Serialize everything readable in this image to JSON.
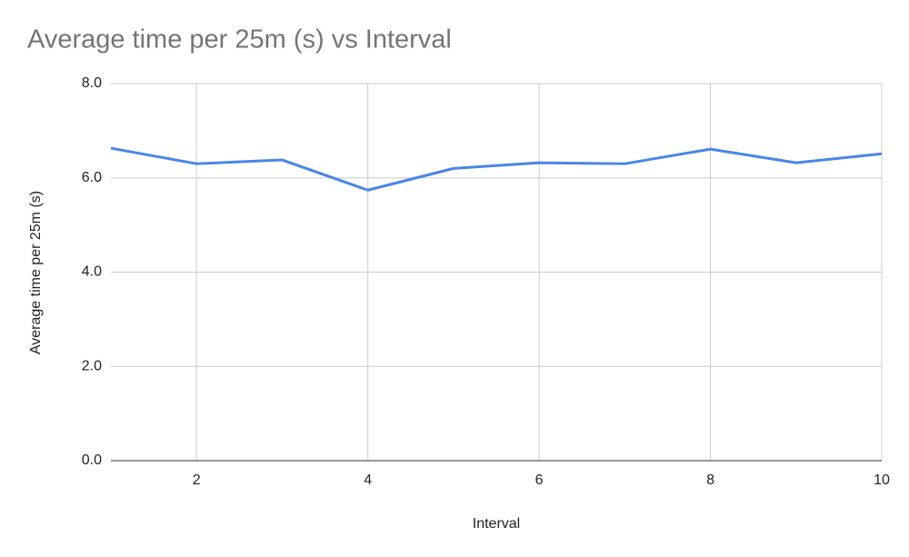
{
  "chart_data": {
    "type": "line",
    "title": "Average time per 25m (s) vs Interval",
    "x_label": "Interval",
    "y_label": "Average time per 25m (s)",
    "x": [
      1,
      2,
      3,
      4,
      5,
      6,
      7,
      8,
      9,
      10
    ],
    "series": [
      {
        "name": "Average time per 25m (s)",
        "color": "#4a86e8",
        "values": [
          6.63,
          6.3,
          6.38,
          5.74,
          6.2,
          6.32,
          6.3,
          6.61,
          6.32,
          6.51
        ]
      }
    ],
    "xlim": [
      1,
      10
    ],
    "xticks": [
      2,
      4,
      6,
      8,
      10
    ],
    "ylim": [
      0,
      8
    ],
    "yticks": [
      {
        "value": 0,
        "label": "0.0"
      },
      {
        "value": 2,
        "label": "2.0"
      },
      {
        "value": 4,
        "label": "4.0"
      },
      {
        "value": 6,
        "label": "6.0"
      },
      {
        "value": 8,
        "label": "8.0"
      }
    ],
    "grid": true
  }
}
